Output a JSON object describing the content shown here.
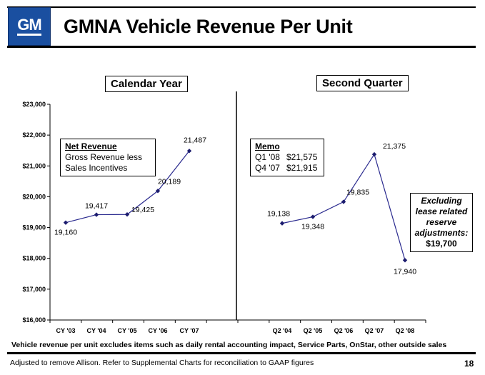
{
  "header": {
    "logo_text": "GM",
    "title": "GMNA Vehicle Revenue Per Unit"
  },
  "panels": {
    "left_label": "Calendar Year",
    "right_label": "Second Quarter"
  },
  "net_revenue_box": {
    "heading": "Net Revenue",
    "line1": "Gross Revenue less",
    "line2": "Sales Incentives"
  },
  "memo_box": {
    "heading": "Memo",
    "rows": [
      {
        "period": "Q1 '08",
        "value": "$21,575"
      },
      {
        "period": "Q4 '07",
        "value": "$21,915"
      }
    ]
  },
  "exclusion_box": {
    "line1": "Excluding",
    "line2": "lease related",
    "line3": "reserve",
    "line4": "adjustments:",
    "value": "$19,700"
  },
  "chart_data": {
    "type": "line",
    "title": "GMNA Vehicle Revenue Per Unit",
    "ylim": [
      16000,
      23000
    ],
    "y_ticks": [
      "$16,000",
      "$17,000",
      "$18,000",
      "$19,000",
      "$20,000",
      "$21,000",
      "$22,000",
      "$23,000"
    ],
    "y_tick_values": [
      16000,
      17000,
      18000,
      19000,
      20000,
      21000,
      22000,
      23000
    ],
    "grid": false,
    "series": [
      {
        "categories": [
          "CY '03",
          "CY '04",
          "CY '05",
          "CY '06",
          "CY '07"
        ],
        "values": [
          19160,
          19417,
          19425,
          20189,
          21487
        ],
        "labels": [
          "19,160",
          "19,417",
          "19,425",
          "20,189",
          "21,487"
        ]
      },
      {
        "categories": [
          "Q2 '04",
          "Q2 '05",
          "Q2 '06",
          "Q2 '07",
          "Q2 '08"
        ],
        "values": [
          19138,
          19348,
          19835,
          21375,
          17940
        ],
        "labels": [
          "19,138",
          "19,348",
          "19,835",
          "21,375",
          "17,940"
        ]
      }
    ],
    "colors": {
      "line": "#2b2b8f",
      "marker": "#1c1c6e"
    }
  },
  "footnotes": {
    "chart_note": "Vehicle revenue per unit excludes items such as daily rental accounting impact, Service Parts, OnStar, other outside sales",
    "source_note": "Adjusted to remove Allison.  Refer to Supplemental Charts for reconciliation to GAAP figures",
    "page_number": "18"
  }
}
